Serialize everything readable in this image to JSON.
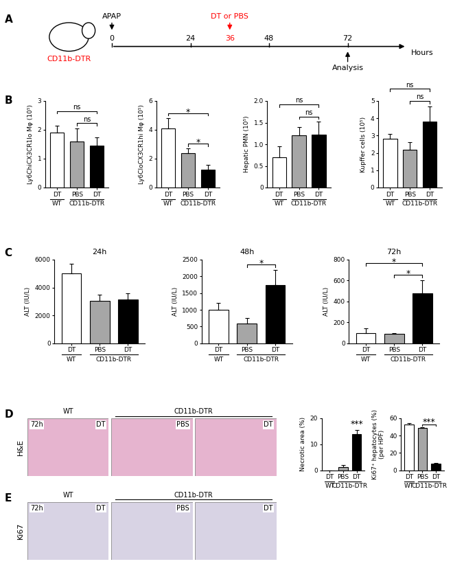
{
  "panel_labels": [
    "A",
    "B",
    "C",
    "D",
    "E"
  ],
  "schematic": {
    "mouse": "CD11b-DTR",
    "treatment": "APAP",
    "injection": "DT or PBS",
    "readout": "Analysis",
    "axis_label": "Hours",
    "ticks": [
      0,
      24,
      36,
      48,
      72
    ],
    "treatment_time": 0,
    "injection_time": 36,
    "readout_time": 72,
    "xlim": [
      -30,
      100
    ],
    "ylim": [
      0,
      1
    ]
  },
  "micrographs": {
    "strain_labels": [
      "WT",
      "CD11b-DTR"
    ],
    "time": "72h",
    "conditions": [
      "DT",
      "PBS",
      "DT"
    ],
    "rows": [
      {
        "stain": "H&E",
        "color": "#e6b4cf"
      },
      {
        "stain": "Ki67",
        "color": "#d8d3e4"
      }
    ]
  },
  "chart_data": [
    {
      "type": "bar",
      "ylabel": "Ly6ChiCX3CR1lo Mφ (10⁵)",
      "categories": [
        "DT",
        "PBS",
        "DT"
      ],
      "values": [
        1.9,
        1.6,
        1.45
      ],
      "errors": [
        0.25,
        0.45,
        0.3
      ],
      "colors": [
        "#ffffff",
        "#a6a6a6",
        "#000000"
      ],
      "ylim": [
        0,
        3
      ],
      "yticks": [
        0,
        1,
        2,
        3
      ],
      "groups": [
        {
          "label": "WT",
          "start": 0,
          "end": 0
        },
        {
          "label": "CD11b-DTR",
          "start": 1,
          "end": 2
        }
      ],
      "significance": [
        {
          "pair": [
            0,
            2
          ],
          "label": "ns"
        },
        {
          "pair": [
            1,
            2
          ],
          "label": "ns"
        }
      ]
    },
    {
      "type": "bar",
      "ylabel": "Ly6CloCX3CR1hi Mφ (10⁵)",
      "categories": [
        "DT",
        "PBS",
        "DT"
      ],
      "values": [
        4.1,
        2.4,
        1.25
      ],
      "errors": [
        0.7,
        0.3,
        0.3
      ],
      "colors": [
        "#ffffff",
        "#a6a6a6",
        "#000000"
      ],
      "ylim": [
        0,
        6
      ],
      "yticks": [
        0,
        2,
        4,
        6
      ],
      "groups": [
        {
          "label": "WT",
          "start": 0,
          "end": 0
        },
        {
          "label": "CD11b-DTR",
          "start": 1,
          "end": 2
        }
      ],
      "significance": [
        {
          "pair": [
            0,
            2
          ],
          "label": "*"
        },
        {
          "pair": [
            1,
            2
          ],
          "label": "*"
        }
      ]
    },
    {
      "type": "bar",
      "ylabel": "Hepatic PMN (10⁵)",
      "categories": [
        "DT",
        "PBS",
        "DT"
      ],
      "values": [
        0.7,
        1.2,
        1.22
      ],
      "errors": [
        0.25,
        0.2,
        0.3
      ],
      "colors": [
        "#ffffff",
        "#a6a6a6",
        "#000000"
      ],
      "ylim": [
        0,
        2.0
      ],
      "yticks": [
        0,
        0.5,
        1.0,
        1.5,
        2.0
      ],
      "groups": [
        {
          "label": "WT",
          "start": 0,
          "end": 0
        },
        {
          "label": "CD11b-DTR",
          "start": 1,
          "end": 2
        }
      ],
      "significance": [
        {
          "pair": [
            0,
            2
          ],
          "label": "ns"
        },
        {
          "pair": [
            1,
            2
          ],
          "label": "ns"
        }
      ]
    },
    {
      "type": "bar",
      "ylabel": "Kupffer cells (10⁵)",
      "categories": [
        "DT",
        "PBS",
        "DT"
      ],
      "values": [
        2.8,
        2.2,
        3.8
      ],
      "errors": [
        0.3,
        0.4,
        0.9
      ],
      "colors": [
        "#ffffff",
        "#a6a6a6",
        "#000000"
      ],
      "ylim": [
        0,
        5
      ],
      "yticks": [
        0,
        1,
        2,
        3,
        4,
        5
      ],
      "groups": [
        {
          "label": "WT",
          "start": 0,
          "end": 0
        },
        {
          "label": "CD11b-DTR",
          "start": 1,
          "end": 2
        }
      ],
      "significance": [
        {
          "pair": [
            0,
            2
          ],
          "label": "ns"
        },
        {
          "pair": [
            1,
            2
          ],
          "label": "ns"
        }
      ]
    },
    {
      "type": "bar",
      "title": "24h",
      "ylabel": "ALT (IU/L)",
      "categories": [
        "DT",
        "PBS",
        "DT"
      ],
      "values": [
        5000,
        3050,
        3150
      ],
      "errors": [
        700,
        450,
        450
      ],
      "colors": [
        "#ffffff",
        "#a6a6a6",
        "#000000"
      ],
      "ylim": [
        0,
        6000
      ],
      "yticks": [
        0,
        2000,
        4000,
        6000
      ],
      "groups": [
        {
          "label": "WT",
          "start": 0,
          "end": 0
        },
        {
          "label": "CD11b-DTR",
          "start": 1,
          "end": 2
        }
      ],
      "significance": []
    },
    {
      "type": "bar",
      "title": "48h",
      "ylabel": "ALT (IU/L)",
      "categories": [
        "DT",
        "PBS",
        "DT"
      ],
      "values": [
        1000,
        600,
        1750
      ],
      "errors": [
        200,
        150,
        450
      ],
      "colors": [
        "#ffffff",
        "#a6a6a6",
        "#000000"
      ],
      "ylim": [
        0,
        2500
      ],
      "yticks": [
        0,
        500,
        1000,
        1500,
        2000,
        2500
      ],
      "groups": [
        {
          "label": "WT",
          "start": 0,
          "end": 0
        },
        {
          "label": "CD11b-DTR",
          "start": 1,
          "end": 2
        }
      ],
      "significance": [
        {
          "pair": [
            1,
            2
          ],
          "label": "*"
        }
      ]
    },
    {
      "type": "bar",
      "title": "72h",
      "ylabel": "ALT (IU/L)",
      "categories": [
        "DT",
        "PBS",
        "DT"
      ],
      "values": [
        100,
        90,
        475
      ],
      "errors": [
        40,
        5,
        130
      ],
      "colors": [
        "#ffffff",
        "#a6a6a6",
        "#000000"
      ],
      "ylim": [
        0,
        800
      ],
      "yticks": [
        0,
        200,
        400,
        600,
        800
      ],
      "groups": [
        {
          "label": "WT",
          "start": 0,
          "end": 0
        },
        {
          "label": "CD11b-DTR",
          "start": 1,
          "end": 2
        }
      ],
      "significance": [
        {
          "pair": [
            0,
            2
          ],
          "label": "*"
        },
        {
          "pair": [
            1,
            2
          ],
          "label": "*"
        }
      ]
    },
    {
      "type": "bar",
      "ylabel": "Necrotic area (%)",
      "categories": [
        "DT",
        "PBS",
        "DT"
      ],
      "values": [
        0,
        1.2,
        14
      ],
      "errors": [
        0,
        0.8,
        1.5
      ],
      "colors": [
        "#ffffff",
        "#a6a6a6",
        "#000000"
      ],
      "ylim": [
        0,
        20
      ],
      "yticks": [
        0,
        10,
        20
      ],
      "groups": [
        {
          "label": "WT",
          "start": 0,
          "end": 0
        },
        {
          "label": "CD11b-DTR",
          "start": 1,
          "end": 2
        }
      ],
      "significance": [
        {
          "pair": [
            2,
            2
          ],
          "label": "***"
        }
      ]
    },
    {
      "type": "bar",
      "ylabel": "Ki67⁺ hepatocytes (%)\n(per HPF)",
      "categories": [
        "DT",
        "PBS",
        "DT"
      ],
      "values": [
        53,
        49,
        7.5
      ],
      "errors": [
        1.5,
        0.5,
        0.8
      ],
      "colors": [
        "#ffffff",
        "#a6a6a6",
        "#000000"
      ],
      "ylim": [
        0,
        60
      ],
      "yticks": [
        0,
        20,
        40,
        60
      ],
      "groups": [
        {
          "label": "WT",
          "start": 0,
          "end": 0
        },
        {
          "label": "CD11b-DTR",
          "start": 1,
          "end": 2
        }
      ],
      "significance": [
        {
          "pair": [
            1,
            2
          ],
          "label": "***"
        }
      ]
    }
  ]
}
